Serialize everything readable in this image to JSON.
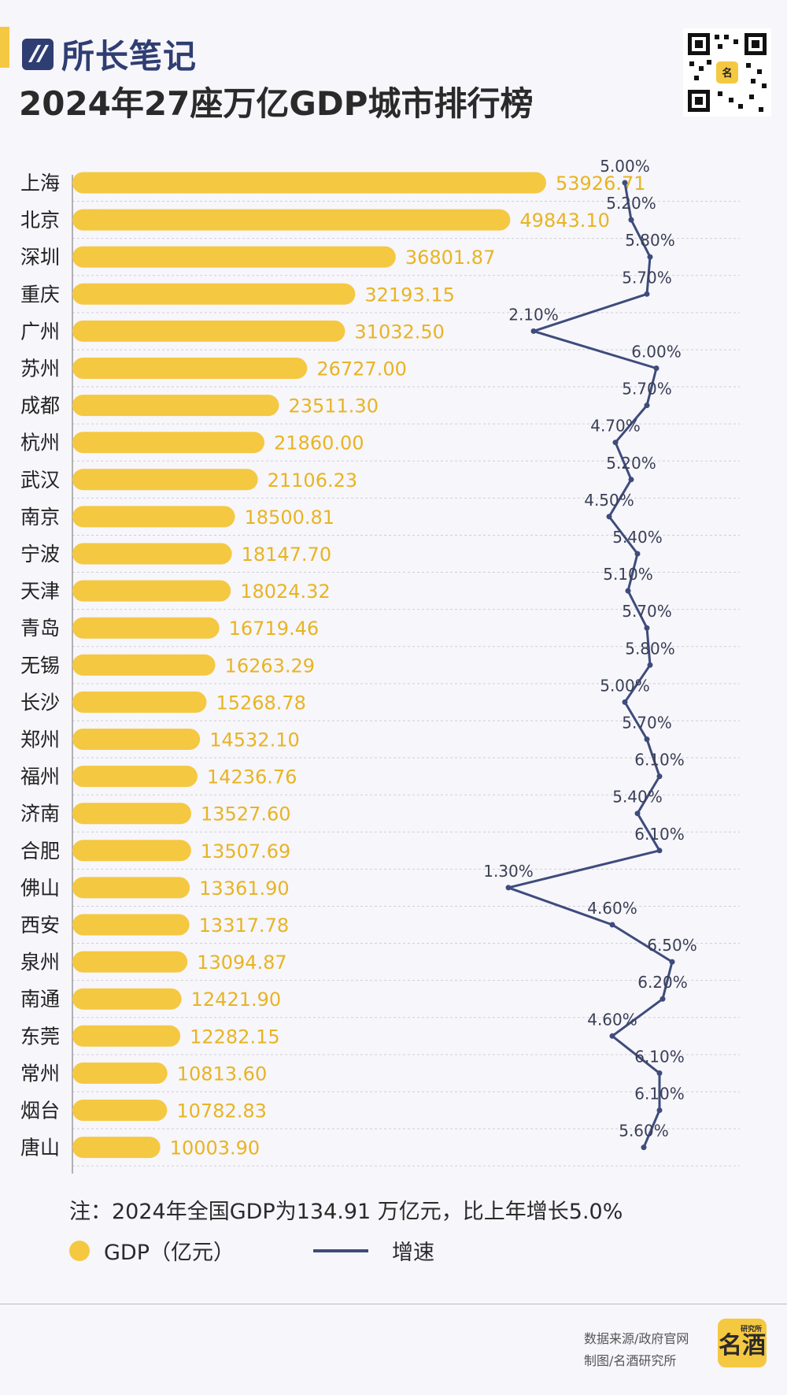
{
  "header": {
    "brand_name": "所长笔记",
    "brand_icon": "brand-logo-icon",
    "title": "2024年27座万亿GDP城市排行榜",
    "qr_icon": "qr-code-icon",
    "accent_color": "#f5c842",
    "brand_color": "#2f3e72"
  },
  "chart_data": {
    "type": "bar",
    "title": "2024年27座万亿GDP城市排行榜",
    "orientation": "horizontal",
    "categories": [
      "上海",
      "北京",
      "深圳",
      "重庆",
      "广州",
      "苏州",
      "成都",
      "杭州",
      "武汉",
      "南京",
      "宁波",
      "天津",
      "青岛",
      "无锡",
      "长沙",
      "郑州",
      "福州",
      "济南",
      "合肥",
      "佛山",
      "西安",
      "泉州",
      "南通",
      "东莞",
      "常州",
      "烟台",
      "唐山"
    ],
    "series": [
      {
        "name": "GDP（亿元）",
        "type": "bar",
        "color": "#f5c842",
        "values": [
          53926.71,
          49843.1,
          36801.87,
          32193.15,
          31032.5,
          26727.0,
          23511.3,
          21860.0,
          21106.23,
          18500.81,
          18147.7,
          18024.32,
          16719.46,
          16263.29,
          15268.78,
          14532.1,
          14236.76,
          13527.6,
          13507.69,
          13361.9,
          13317.78,
          13094.87,
          12421.9,
          12282.15,
          10813.6,
          10782.83,
          10003.9
        ],
        "labels": [
          "53926.71",
          "49843.10",
          "36801.87",
          "32193.15",
          "31032.50",
          "26727.00",
          "23511.30",
          "21860.00",
          "21106.23",
          "18500.81",
          "18147.70",
          "18024.32",
          "16719.46",
          "16263.29",
          "15268.78",
          "14532.10",
          "14236.76",
          "13527.60",
          "13507.69",
          "13361.90",
          "13317.78",
          "13094.87",
          "12421.90",
          "12282.15",
          "10813.60",
          "10782.83",
          "10003.90"
        ]
      },
      {
        "name": "增速",
        "type": "line",
        "color": "#3e4c7c",
        "values": [
          5.0,
          5.2,
          5.8,
          5.7,
          2.1,
          6.0,
          5.7,
          4.7,
          5.2,
          4.5,
          5.4,
          5.1,
          5.7,
          5.8,
          5.0,
          5.7,
          6.1,
          5.4,
          6.1,
          1.3,
          4.6,
          6.5,
          6.2,
          4.6,
          6.1,
          6.1,
          5.6
        ],
        "labels": [
          "5.00%",
          "5.20%",
          "5.80%",
          "5.70%",
          "2.10%",
          "6.00%",
          "5.70%",
          "4.70%",
          "5.20%",
          "4.50%",
          "5.40%",
          "5.10%",
          "5.70%",
          "5.80%",
          "5.00%",
          "5.70%",
          "6.10%",
          "5.40%",
          "6.10%",
          "1.30%",
          "4.60%",
          "6.50%",
          "6.20%",
          "4.60%",
          "6.10%",
          "6.10%",
          "5.60%"
        ]
      }
    ],
    "xlim": [
      0,
      60000
    ],
    "growth_range": [
      1.3,
      6.5
    ],
    "legend_position": "bottom"
  },
  "note": "注：2024年全国GDP为134.91 万亿元，比上年增长5.0%",
  "legend": {
    "gdp_label": "GDP（亿元）",
    "growth_label": "增速"
  },
  "footer": {
    "source": "数据来源/政府官网",
    "credit": "制图/名酒研究所",
    "logo_text": "名酒",
    "logo_small": "研究所",
    "logo_icon": "mingjiu-logo-icon"
  }
}
